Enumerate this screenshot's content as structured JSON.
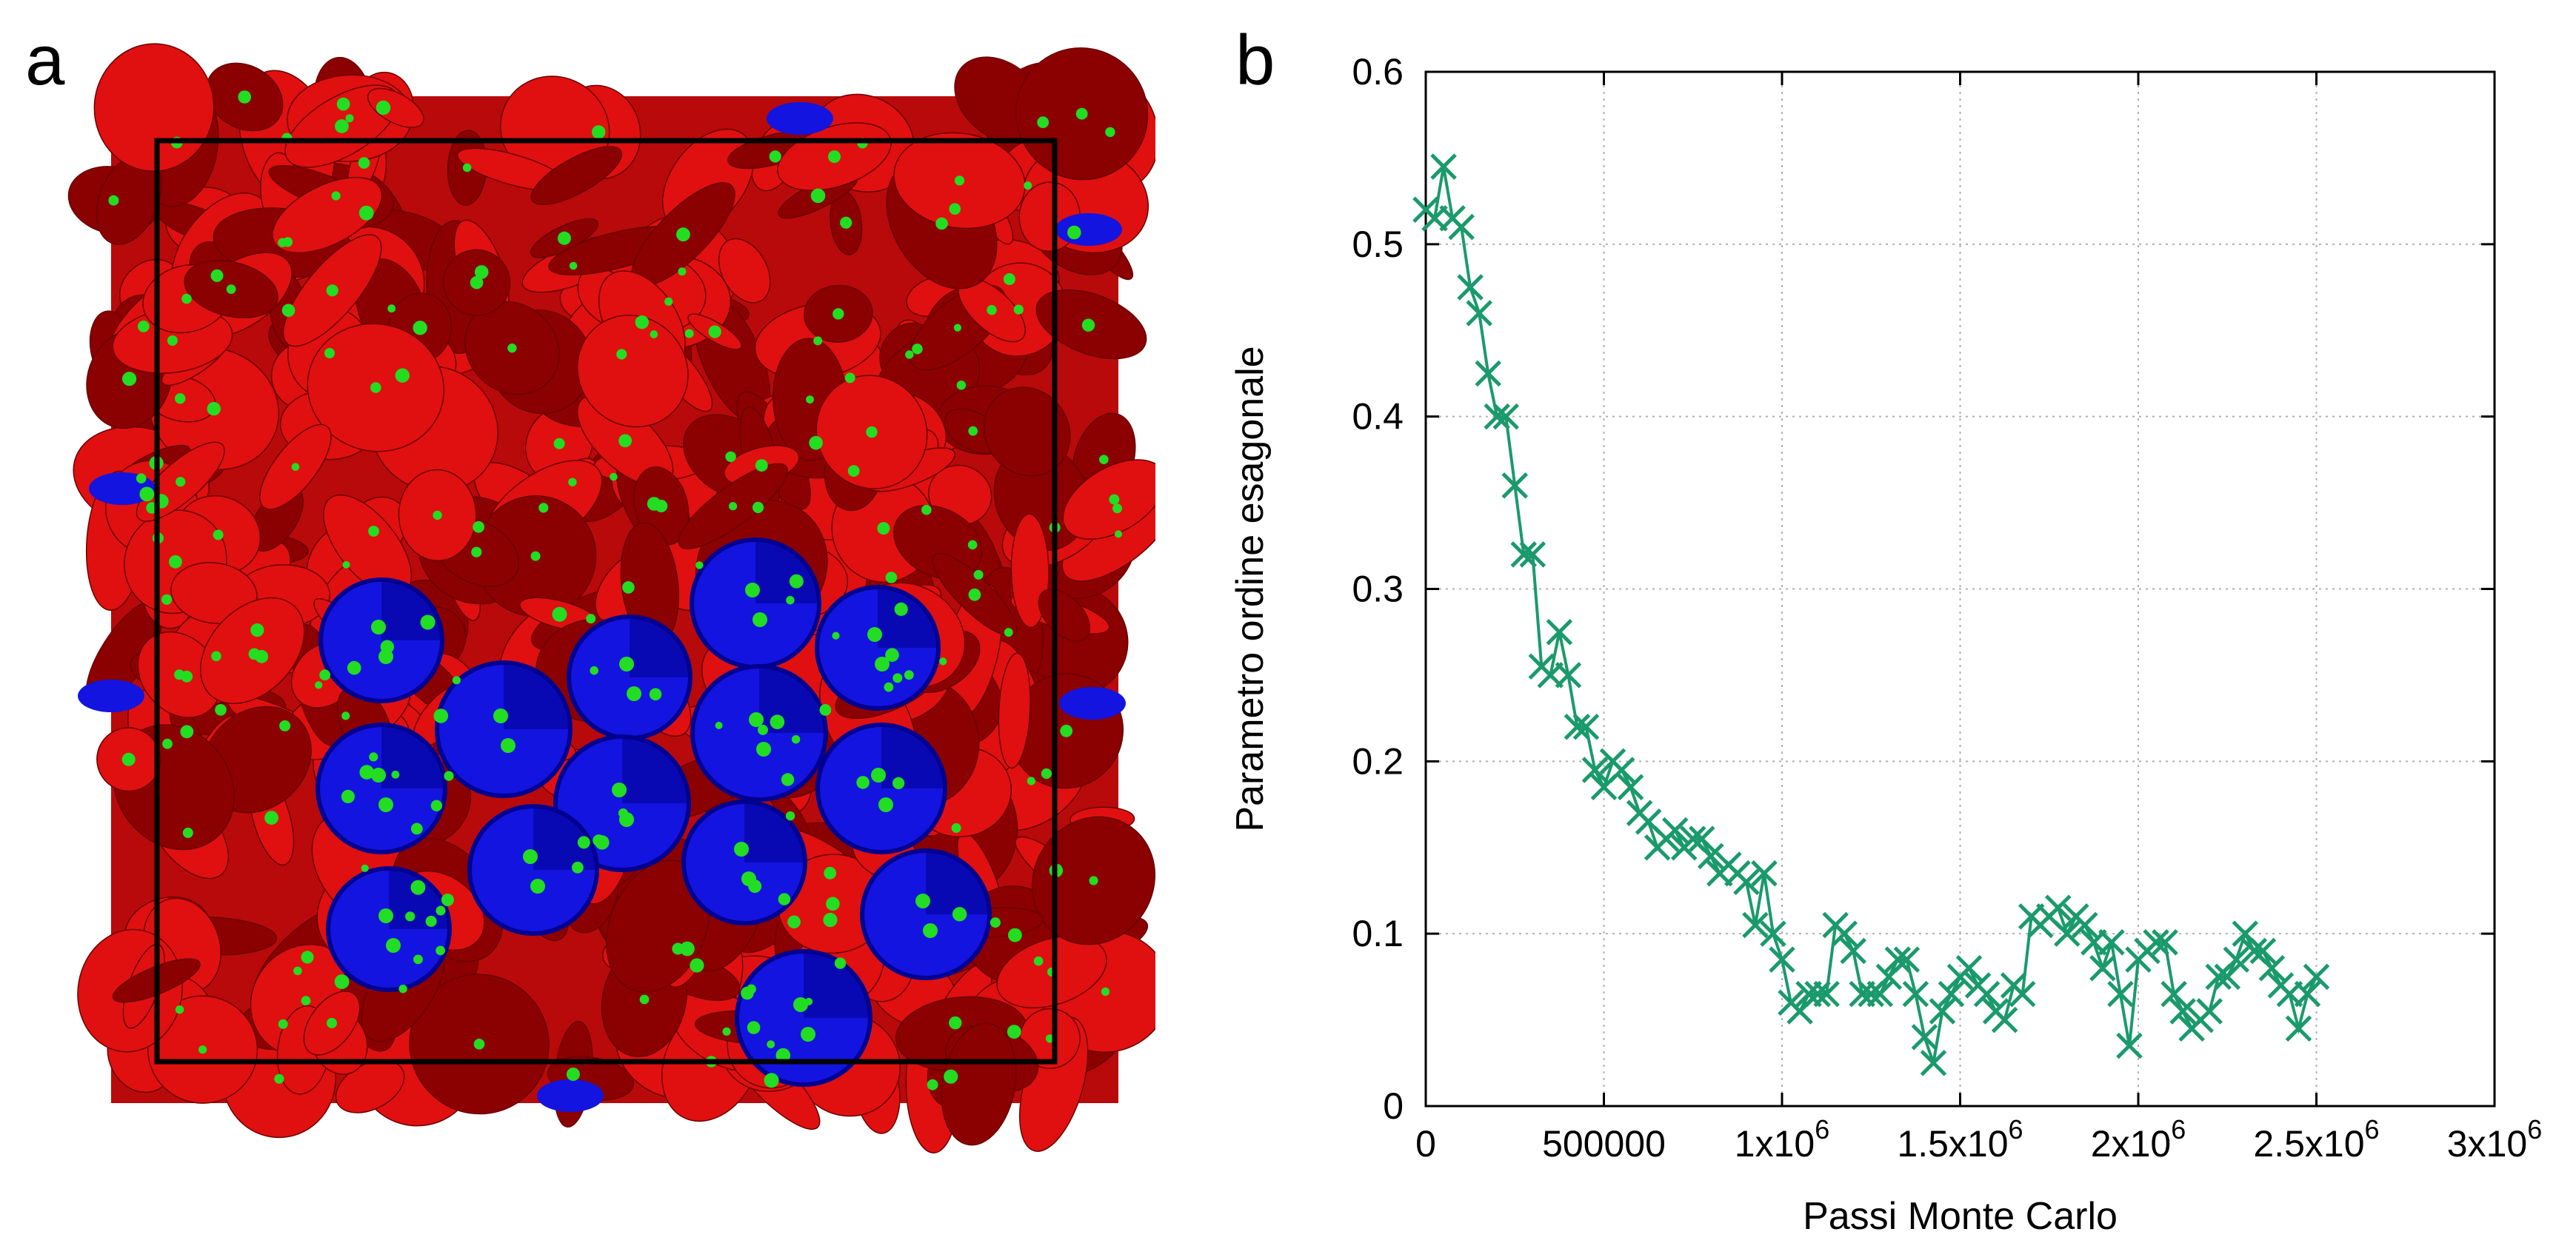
{
  "panels": {
    "a_label": "a",
    "b_label": "b"
  },
  "simulation": {
    "colors": {
      "disc_red": "#e01010",
      "disc_dark_red": "#8b0000",
      "disc_blue": "#1414e0",
      "disc_dark_blue": "#000090",
      "particle_center": "#22dd22",
      "box_frame": "#000000"
    }
  },
  "chart_data": {
    "type": "line",
    "xlabel": "Passi Monte Carlo",
    "ylabel": "Parametro ordine esagonale",
    "xlim": [
      0,
      3000000
    ],
    "ylim": [
      0,
      0.6
    ],
    "xticks": [
      {
        "value": 0,
        "base": "0",
        "exp": ""
      },
      {
        "value": 500000,
        "base": "500000",
        "exp": ""
      },
      {
        "value": 1000000,
        "base": "1x10",
        "exp": "6"
      },
      {
        "value": 1500000,
        "base": "1.5x10",
        "exp": "6"
      },
      {
        "value": 2000000,
        "base": "2x10",
        "exp": "6"
      },
      {
        "value": 2500000,
        "base": "2.5x10",
        "exp": "6"
      },
      {
        "value": 3000000,
        "base": "3x10",
        "exp": "6"
      }
    ],
    "yticks": [
      "0",
      "0.1",
      "0.2",
      "0.3",
      "0.4",
      "0.5",
      "0.6"
    ],
    "grid": true,
    "marker": "x",
    "line_color": "#1a9a6c",
    "series": [
      {
        "x": [
          0,
          25000,
          50000,
          75000,
          100000,
          125000,
          150000,
          175000,
          200000,
          225000,
          250000,
          275000,
          300000,
          325000,
          350000,
          375000,
          400000,
          425000,
          450000,
          475000,
          500000,
          525000,
          550000,
          575000,
          600000,
          625000,
          650000,
          675000,
          700000,
          725000,
          750000,
          775000,
          800000,
          825000,
          850000,
          875000,
          900000,
          925000,
          950000,
          975000,
          1000000,
          1025000,
          1050000,
          1075000,
          1100000,
          1125000,
          1150000,
          1175000,
          1200000,
          1225000,
          1250000,
          1275000,
          1300000,
          1325000,
          1350000,
          1375000,
          1400000,
          1425000,
          1450000,
          1475000,
          1500000,
          1525000,
          1550000,
          1575000,
          1600000,
          1625000,
          1650000,
          1675000,
          1700000,
          1725000,
          1750000,
          1775000,
          1800000,
          1825000,
          1850000,
          1875000,
          1900000,
          1925000,
          1950000,
          1975000,
          2000000,
          2025000,
          2050000,
          2075000,
          2100000,
          2125000,
          2150000,
          2175000,
          2200000,
          2225000,
          2250000,
          2275000,
          2300000,
          2325000,
          2350000,
          2375000,
          2400000,
          2425000,
          2450000,
          2475000,
          2500000
        ],
        "y": [
          0.52,
          0.515,
          0.545,
          0.515,
          0.51,
          0.475,
          0.46,
          0.425,
          0.4,
          0.4,
          0.36,
          0.32,
          0.32,
          0.255,
          0.25,
          0.275,
          0.25,
          0.22,
          0.22,
          0.195,
          0.185,
          0.2,
          0.195,
          0.185,
          0.17,
          0.165,
          0.15,
          0.155,
          0.16,
          0.15,
          0.155,
          0.155,
          0.145,
          0.135,
          0.14,
          0.135,
          0.13,
          0.105,
          0.135,
          0.1,
          0.085,
          0.06,
          0.055,
          0.065,
          0.065,
          0.065,
          0.105,
          0.1,
          0.09,
          0.065,
          0.065,
          0.065,
          0.075,
          0.085,
          0.085,
          0.065,
          0.04,
          0.025,
          0.055,
          0.065,
          0.075,
          0.08,
          0.07,
          0.065,
          0.055,
          0.05,
          0.07,
          0.065,
          0.11,
          0.105,
          0.11,
          0.115,
          0.1,
          0.11,
          0.105,
          0.095,
          0.08,
          0.095,
          0.065,
          0.035,
          0.085,
          0.09,
          0.095,
          0.095,
          0.065,
          0.055,
          0.045,
          0.05,
          0.055,
          0.075,
          0.075,
          0.085,
          0.1,
          0.09,
          0.09,
          0.08,
          0.07,
          0.065,
          0.045,
          0.065,
          0.075
        ]
      }
    ]
  }
}
